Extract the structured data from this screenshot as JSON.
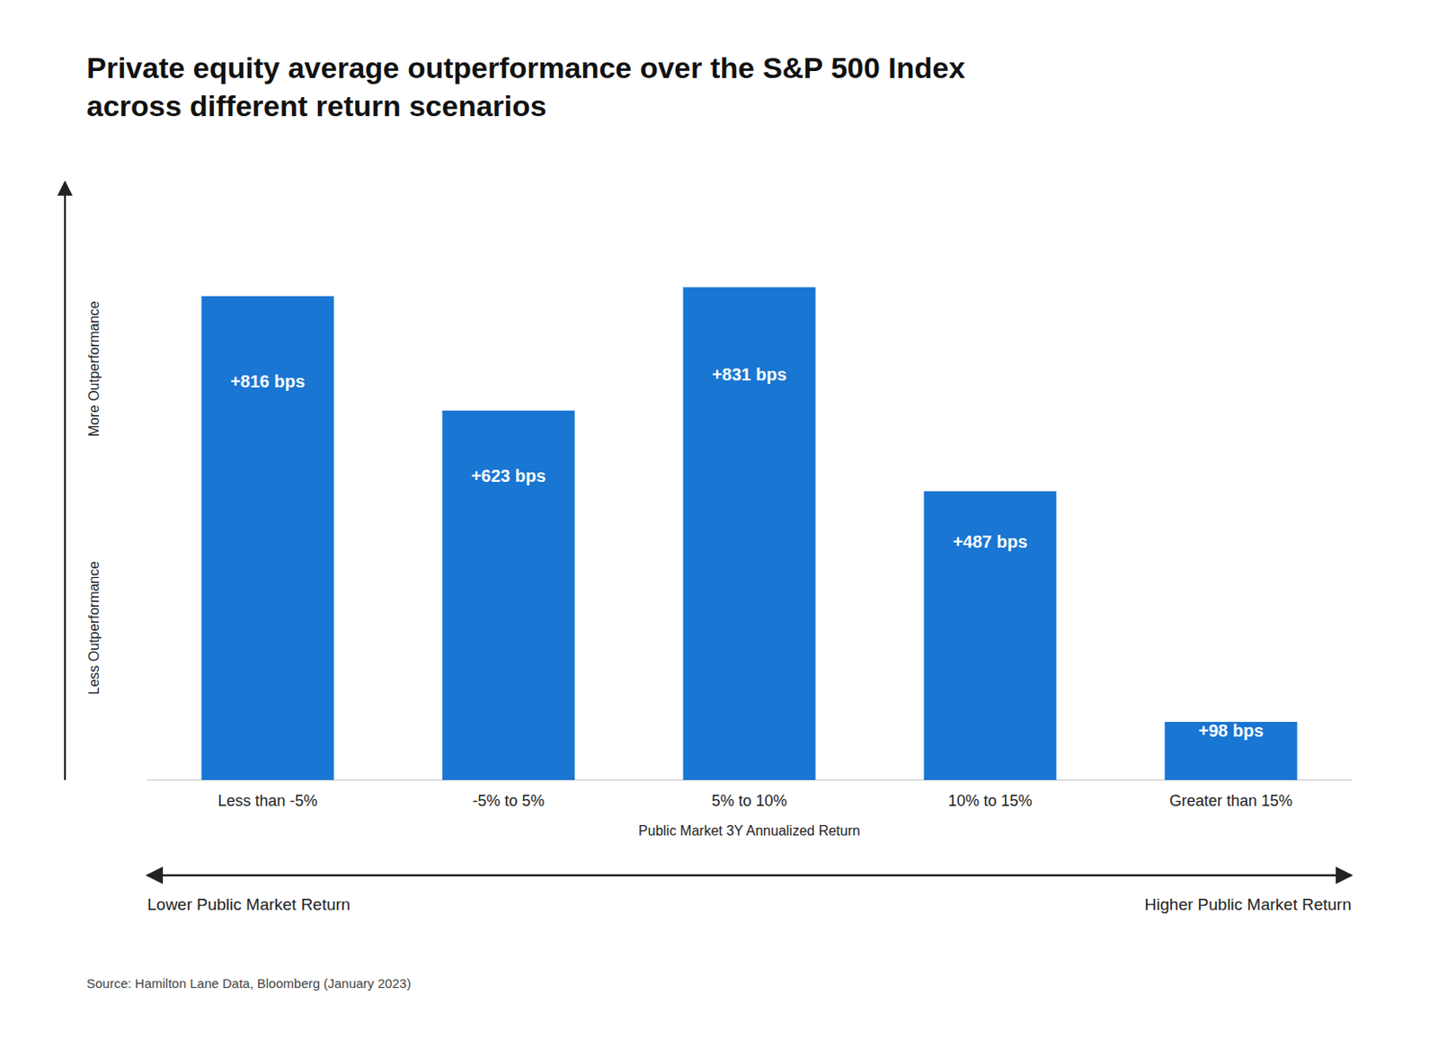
{
  "chart_data": {
    "type": "bar",
    "title": "Private equity average outperformance over the S&P 500 Index\nacross different return scenarios",
    "categories": [
      "Less than -5%",
      "-5% to 5%",
      "5% to 10%",
      "10% to 15%",
      "Greater than 15%"
    ],
    "values": [
      816,
      623,
      831,
      487,
      98
    ],
    "value_labels": [
      "+816 bps",
      "+623 bps",
      "+831 bps",
      "+487 bps",
      "+98 bps"
    ],
    "data_labels": true,
    "color": "#1976D2",
    "xlabel": "Public Market 3Y Annualized Return",
    "ylim": [
      0,
      950
    ],
    "tick_labels": "x",
    "grid": false,
    "annotations": [
      "More Outperformance",
      "Less Outperformance",
      "Lower Public Market Return",
      "Higher Public Market Return"
    ],
    "source": "Source: Hamilton Lane Data, Bloomberg (January 2023)"
  }
}
